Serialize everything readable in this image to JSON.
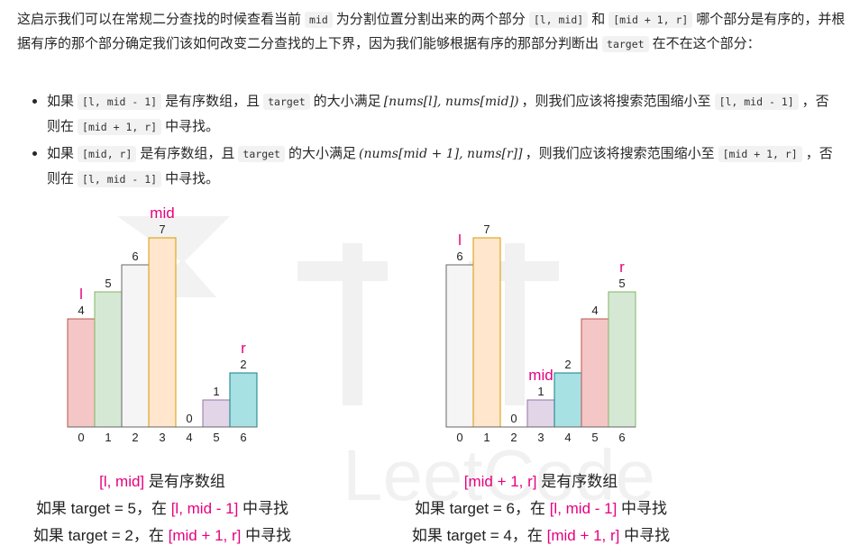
{
  "intro": {
    "t1": "这启示我们可以在常规二分查找的时候查看当前",
    "c1": "mid",
    "t2": "为分割位置分割出来的两个部分",
    "c2": "[l, mid]",
    "t3": "和",
    "c3": "[mid + 1, r]",
    "t4": "哪个部分是有序的，并根据有序的那个部分确定我们该如何改变二分查找的上下界，因为我们能够根据有序的那部分判断出",
    "c4": "target",
    "t5": "在不在这个部分："
  },
  "bullets": [
    {
      "t1": "如果",
      "c1": "[l, mid - 1]",
      "t2": "是有序数组，且",
      "c2": "target",
      "t3": "的大小满足",
      "m": "[nums[l], nums[mid])",
      "t4": "，则我们应该将搜索范围缩小至",
      "c3": "[l, mid - 1]",
      "t5": "，否则在",
      "c4": "[mid + 1, r]",
      "t6": "中寻找。"
    },
    {
      "t1": "如果",
      "c1": "[mid, r]",
      "t2": "是有序数组，且",
      "c2": "target",
      "t3": "的大小满足",
      "m": "(nums[mid + 1], nums[r]]",
      "t4": "，则我们应该将搜索范围缩小至",
      "c3": "[mid + 1, r]",
      "t5": "，否则在",
      "c4": "[l, mid - 1]",
      "t6": "中寻找。"
    }
  ],
  "watermark": "LeetCode",
  "figures": [
    {
      "values": [
        4,
        5,
        6,
        7,
        0,
        1,
        2
      ],
      "indices": [
        "0",
        "1",
        "2",
        "3",
        "4",
        "5",
        "6"
      ],
      "colors": [
        "#f5c6c6",
        "#d5e8d4",
        "#f5f5f5",
        "#ffe6cc",
        "#ffffff",
        "#e1d5e7",
        "#a8e1e3"
      ],
      "strokes": [
        "#b85450",
        "#82b366",
        "#666666",
        "#d79b00",
        "#999999",
        "#9673a6",
        "#0e8088"
      ],
      "markers": [
        {
          "text": "l",
          "index": 0
        },
        {
          "text": "mid",
          "index": 3
        },
        {
          "text": "r",
          "index": 6
        }
      ],
      "captions": [
        [
          {
            "t": "[l, mid]",
            "red": true
          },
          {
            "t": " 是有序数组",
            "red": false
          }
        ],
        [
          {
            "t": "如果 target = 5，在 ",
            "red": false
          },
          {
            "t": "[l, mid - 1]",
            "red": true
          },
          {
            "t": " 中寻找",
            "red": false
          }
        ],
        [
          {
            "t": "如果 target = 2，在 ",
            "red": false
          },
          {
            "t": "[mid + 1, r]",
            "red": true
          },
          {
            "t": " 中寻找",
            "red": false
          }
        ]
      ]
    },
    {
      "values": [
        6,
        7,
        0,
        1,
        2,
        4,
        5
      ],
      "indices": [
        "0",
        "1",
        "2",
        "3",
        "4",
        "5",
        "6"
      ],
      "colors": [
        "#f5f5f5",
        "#ffe6cc",
        "#ffffff",
        "#e1d5e7",
        "#a8e1e3",
        "#f5c6c6",
        "#d5e8d4"
      ],
      "strokes": [
        "#666666",
        "#d79b00",
        "#999999",
        "#9673a6",
        "#0e8088",
        "#b85450",
        "#82b366"
      ],
      "markers": [
        {
          "text": "l",
          "index": 0
        },
        {
          "text": "mid",
          "index": 3
        },
        {
          "text": "r",
          "index": 6
        }
      ],
      "captions": [
        [
          {
            "t": "[mid + 1, r]",
            "red": true
          },
          {
            "t": " 是有序数组",
            "red": false
          }
        ],
        [
          {
            "t": "如果 target = 6，在 ",
            "red": false
          },
          {
            "t": "[l, mid - 1]",
            "red": true
          },
          {
            "t": " 中寻找",
            "red": false
          }
        ],
        [
          {
            "t": "如果 target = 4，在 ",
            "red": false
          },
          {
            "t": "[mid + 1, r]",
            "red": true
          },
          {
            "t": " 中寻找",
            "red": false
          }
        ]
      ]
    }
  ],
  "accent": "#e6007e"
}
